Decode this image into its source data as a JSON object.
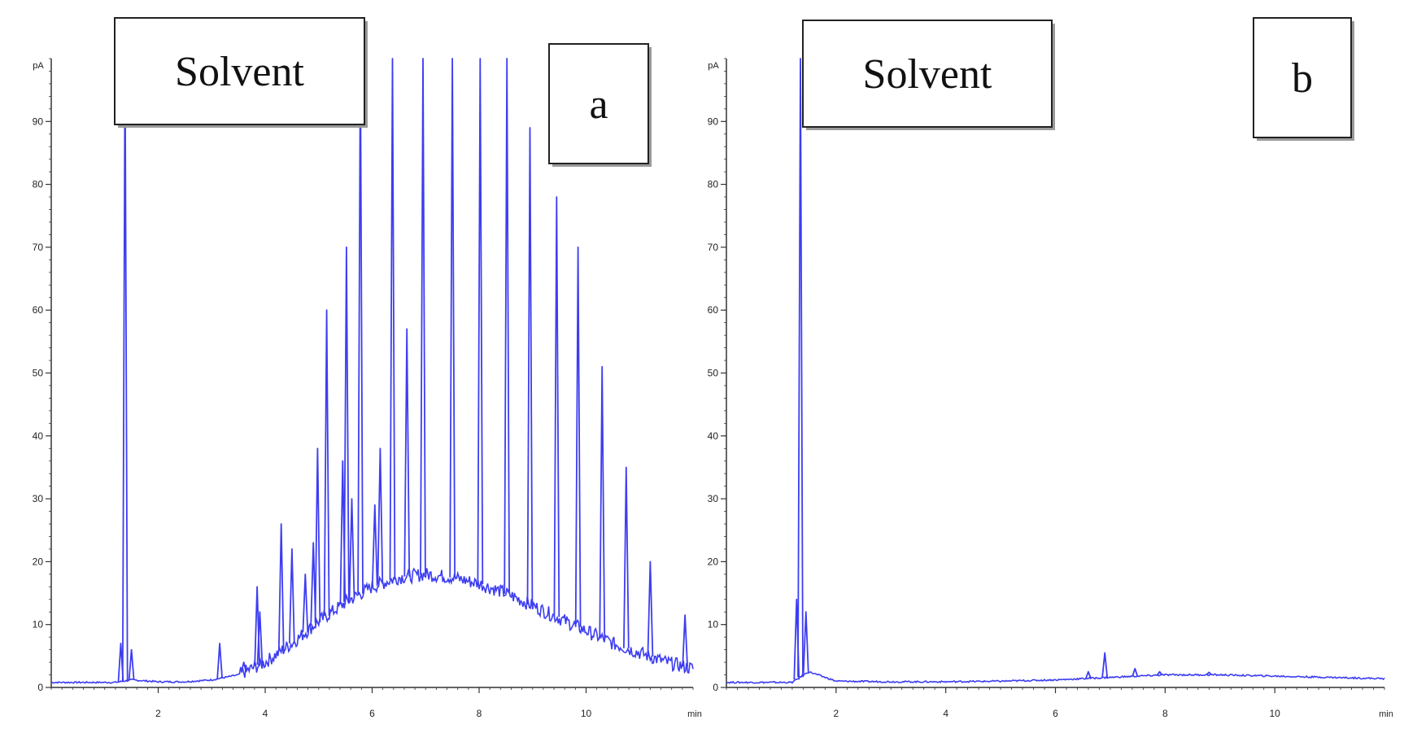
{
  "colors": {
    "trace": "#3d3df2",
    "axis": "#333333",
    "box_border": "#222222"
  },
  "chart_data": [
    {
      "type": "line",
      "panel": "a",
      "box_labels": {
        "left": "Solvent",
        "right": "a"
      },
      "y_unit": "pA",
      "x_unit": "min",
      "xlim": [
        0,
        12.0
      ],
      "ylim": [
        0,
        100
      ],
      "x_ticks": [
        2,
        4,
        6,
        8,
        10
      ],
      "y_ticks": [
        0,
        10,
        20,
        30,
        40,
        50,
        60,
        70,
        80,
        90
      ],
      "grid": false,
      "baseline": [
        [
          0,
          0.8
        ],
        [
          1.2,
          0.8
        ],
        [
          1.5,
          1.2
        ],
        [
          2.0,
          0.9
        ],
        [
          2.5,
          0.9
        ],
        [
          3.0,
          1.2
        ],
        [
          3.5,
          2.0
        ],
        [
          4.0,
          4.0
        ],
        [
          4.5,
          7.0
        ],
        [
          5.0,
          10.5
        ],
        [
          5.5,
          13.5
        ],
        [
          6.0,
          16.0
        ],
        [
          6.5,
          17.5
        ],
        [
          7.0,
          18.0
        ],
        [
          7.5,
          17.5
        ],
        [
          8.0,
          16.5
        ],
        [
          8.5,
          15.0
        ],
        [
          9.0,
          13.0
        ],
        [
          9.5,
          11.0
        ],
        [
          10.0,
          9.0
        ],
        [
          10.5,
          7.0
        ],
        [
          11.0,
          5.5
        ],
        [
          11.5,
          4.0
        ],
        [
          12.0,
          3.0
        ]
      ],
      "peaks": [
        {
          "x": 1.3,
          "y": 7
        },
        {
          "x": 1.38,
          "y": 100
        },
        {
          "x": 1.5,
          "y": 6
        },
        {
          "x": 3.15,
          "y": 7
        },
        {
          "x": 3.6,
          "y": 4
        },
        {
          "x": 3.85,
          "y": 16
        },
        {
          "x": 3.9,
          "y": 12
        },
        {
          "x": 4.3,
          "y": 26
        },
        {
          "x": 4.5,
          "y": 22
        },
        {
          "x": 4.75,
          "y": 18
        },
        {
          "x": 4.9,
          "y": 23
        },
        {
          "x": 4.98,
          "y": 38
        },
        {
          "x": 5.15,
          "y": 60
        },
        {
          "x": 5.45,
          "y": 36
        },
        {
          "x": 5.52,
          "y": 70
        },
        {
          "x": 5.62,
          "y": 30
        },
        {
          "x": 5.78,
          "y": 100
        },
        {
          "x": 6.05,
          "y": 29
        },
        {
          "x": 6.15,
          "y": 38
        },
        {
          "x": 6.38,
          "y": 100
        },
        {
          "x": 6.65,
          "y": 57
        },
        {
          "x": 6.95,
          "y": 100
        },
        {
          "x": 7.5,
          "y": 100
        },
        {
          "x": 8.02,
          "y": 100
        },
        {
          "x": 8.52,
          "y": 100
        },
        {
          "x": 8.95,
          "y": 89
        },
        {
          "x": 9.45,
          "y": 78
        },
        {
          "x": 9.85,
          "y": 70
        },
        {
          "x": 10.3,
          "y": 51
        },
        {
          "x": 10.75,
          "y": 35
        },
        {
          "x": 11.2,
          "y": 20
        },
        {
          "x": 11.85,
          "y": 11.5
        }
      ]
    },
    {
      "type": "line",
      "panel": "b",
      "box_labels": {
        "left": "Solvent",
        "right": "b"
      },
      "y_unit": "pA",
      "x_unit": "min",
      "xlim": [
        0,
        12.0
      ],
      "ylim": [
        0,
        100
      ],
      "x_ticks": [
        2,
        4,
        6,
        8,
        10
      ],
      "y_ticks": [
        0,
        10,
        20,
        30,
        40,
        50,
        60,
        70,
        80,
        90
      ],
      "grid": false,
      "baseline": [
        [
          0,
          0.8
        ],
        [
          1.2,
          0.8
        ],
        [
          1.5,
          2.5
        ],
        [
          2.0,
          1.0
        ],
        [
          3.0,
          0.9
        ],
        [
          4.0,
          0.9
        ],
        [
          5.0,
          1.0
        ],
        [
          6.0,
          1.2
        ],
        [
          7.0,
          1.6
        ],
        [
          8.0,
          2.0
        ],
        [
          9.0,
          2.0
        ],
        [
          10.0,
          1.8
        ],
        [
          11.0,
          1.6
        ],
        [
          12.0,
          1.4
        ]
      ],
      "peaks": [
        {
          "x": 1.28,
          "y": 14
        },
        {
          "x": 1.35,
          "y": 100
        },
        {
          "x": 1.45,
          "y": 12
        },
        {
          "x": 6.6,
          "y": 2.5
        },
        {
          "x": 6.9,
          "y": 5.5
        },
        {
          "x": 7.45,
          "y": 3.0
        },
        {
          "x": 7.9,
          "y": 2.5
        },
        {
          "x": 8.8,
          "y": 2.4
        }
      ]
    }
  ]
}
